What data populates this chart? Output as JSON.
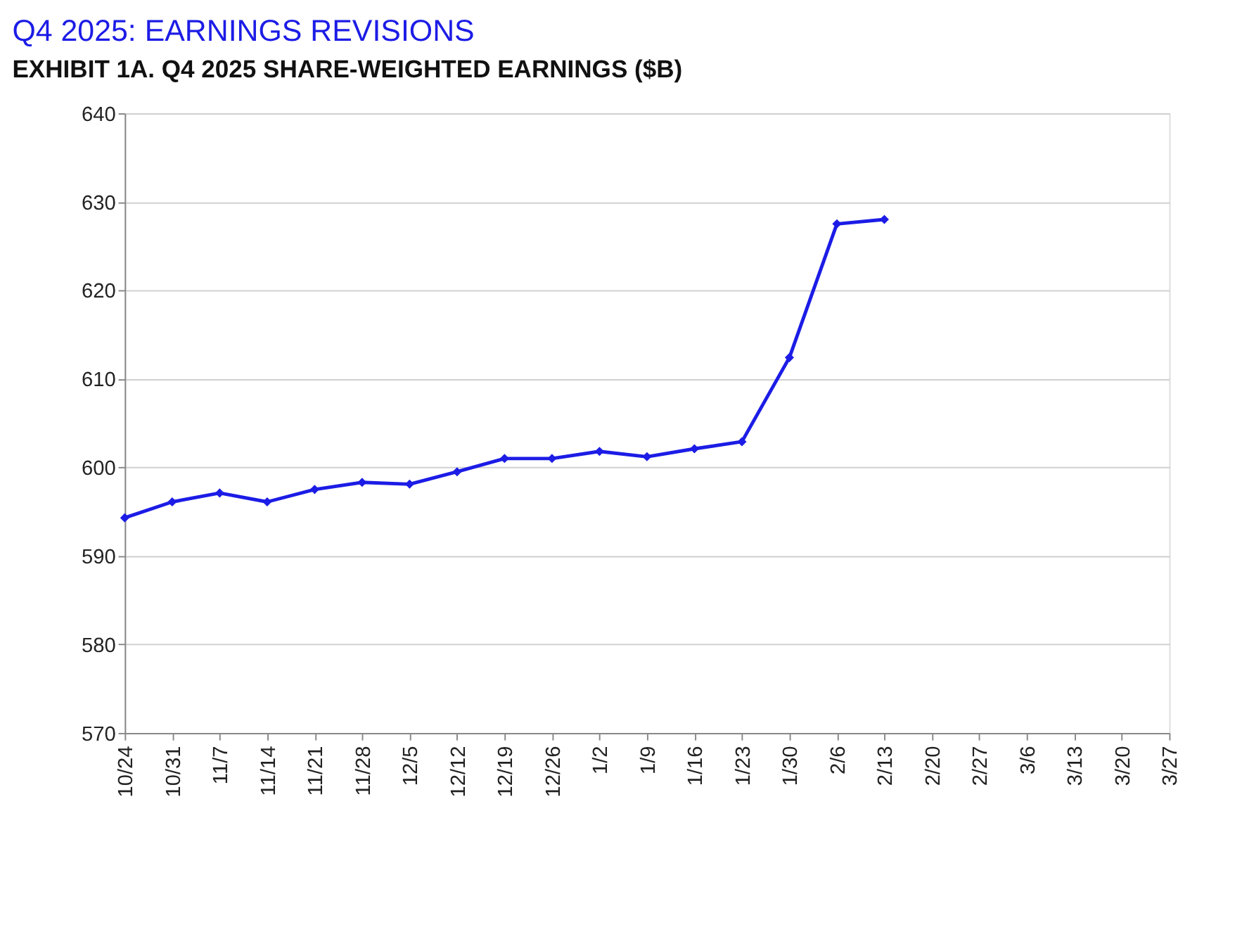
{
  "chart_data": {
    "type": "line",
    "title": "Q4 2025: EARNINGS REVISIONS",
    "subtitle": "EXHIBIT 1A.  Q4 2025 SHARE-WEIGHTED EARNINGS ($B)",
    "categories": [
      "10/24",
      "10/31",
      "11/7",
      "11/14",
      "11/21",
      "11/28",
      "12/5",
      "12/12",
      "12/19",
      "12/26",
      "1/2",
      "1/9",
      "1/16",
      "1/23",
      "1/30",
      "2/6",
      "2/13",
      "2/20",
      "2/27",
      "3/6",
      "3/13",
      "3/20",
      "3/27"
    ],
    "series": [
      {
        "color": "#1c1ce6",
        "values": [
          594.3,
          596.1,
          597.1,
          596.1,
          597.5,
          598.3,
          598.1,
          599.5,
          601.0,
          601.0,
          601.8,
          601.2,
          602.1,
          602.9,
          612.4,
          627.5,
          628.0,
          null,
          null,
          null,
          null,
          null,
          null
        ]
      }
    ],
    "ylim": [
      570,
      640
    ],
    "yticks": [
      570,
      580,
      590,
      600,
      610,
      620,
      630,
      640
    ],
    "grid": "y",
    "marker": "diamond",
    "line_style": "solid"
  }
}
